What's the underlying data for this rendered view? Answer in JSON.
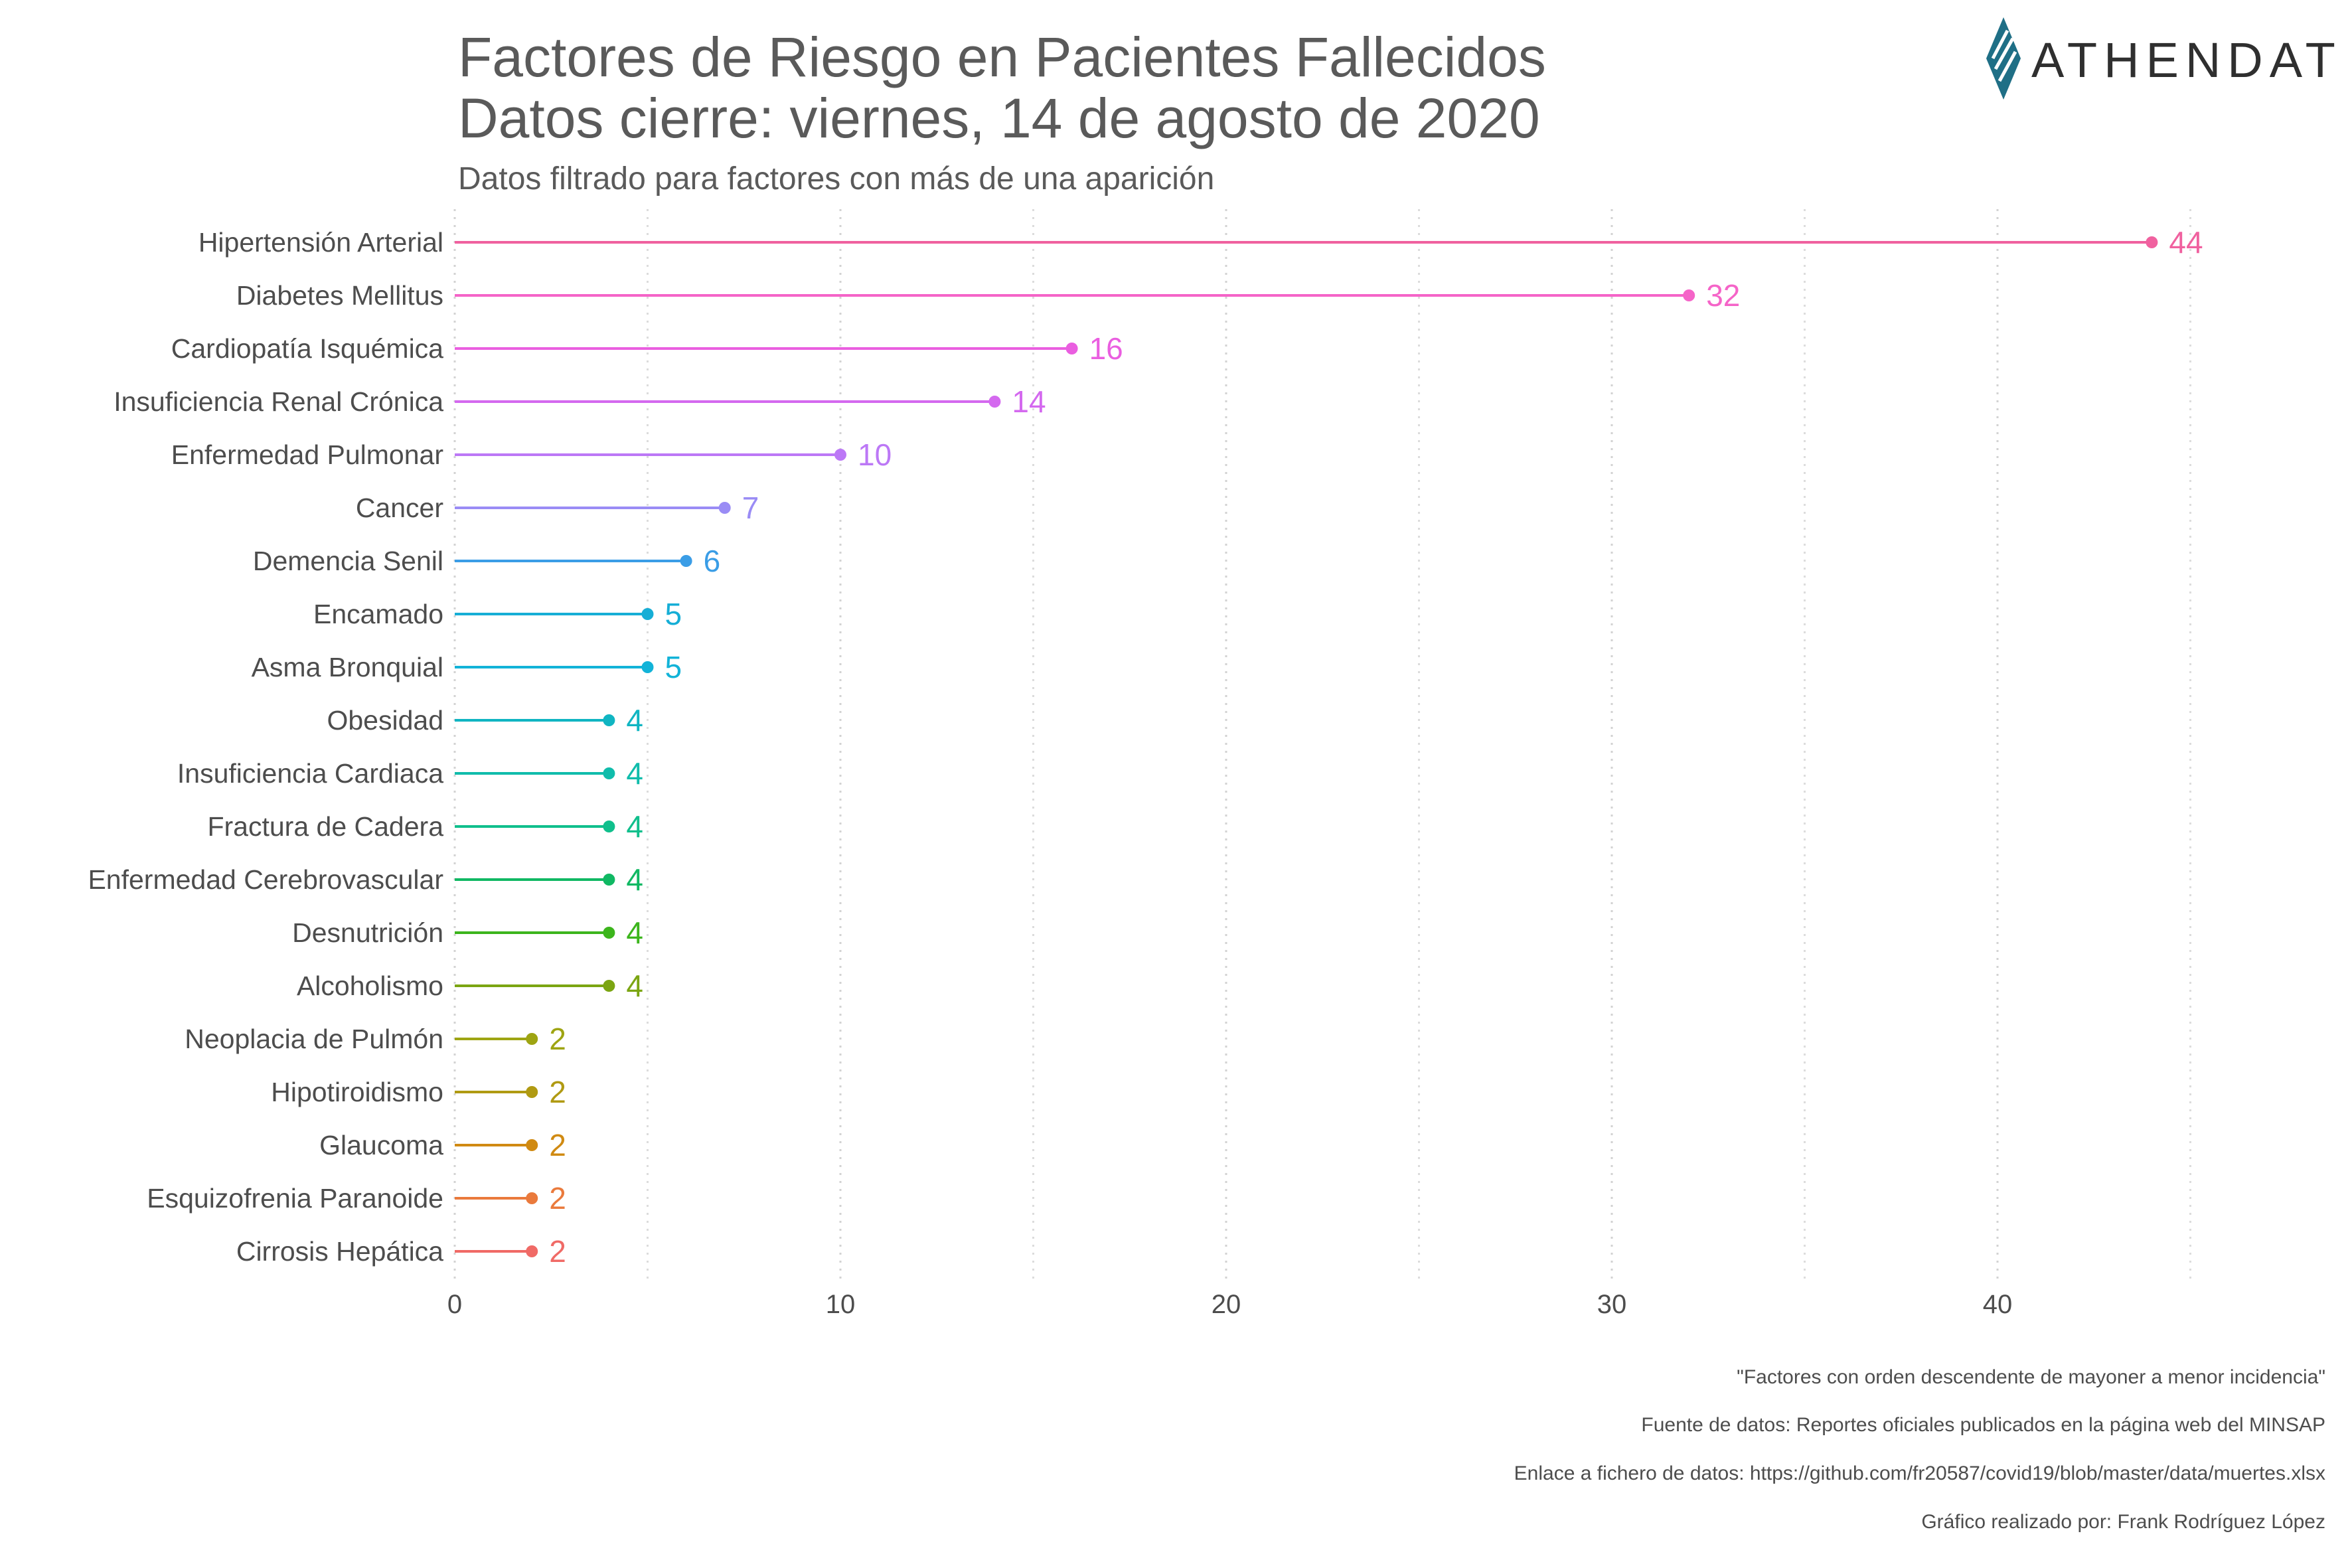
{
  "title_line1": "Factores de Riesgo en Pacientes Fallecidos",
  "title_line2": "Datos cierre: viernes, 14 de agosto de 2020",
  "subtitle": "Datos filtrado para factores con más de una aparición",
  "logo_text": "ATHENDAT",
  "logo_color": "#1f6f86",
  "captions": [
    "\"Factores con orden descendente de mayoner a menor incidencia\"",
    "Fuente de datos: Reportes oficiales publicados en la página web del MINSAP",
    "Enlace a fichero de datos: https://github.com/fr20587/covid19/blob/master/data/muertes.xlsx",
    "Gráfico realizado por: Frank Rodríguez López"
  ],
  "chart_data": {
    "type": "lollipop",
    "orientation": "horizontal",
    "xlim": [
      0,
      46
    ],
    "x_ticks": [
      0,
      10,
      20,
      30,
      40
    ],
    "grid": "vertical dotted",
    "categories": [
      "Hipertensión Arterial",
      "Diabetes Mellitus",
      "Cardiopatía Isquémica",
      "Insuficiencia Renal Crónica",
      "Enfermedad Pulmonar",
      "Cancer",
      "Demencia Senil",
      "Encamado",
      "Asma Bronquial",
      "Obesidad",
      "Insuficiencia Cardiaca",
      "Fractura de Cadera",
      "Enfermedad Cerebrovascular",
      "Desnutrición",
      "Alcoholismo",
      "Neoplacia de Pulmón",
      "Hipotiroidismo",
      "Glaucoma",
      "Esquizofrenia Paranoide",
      "Cirrosis Hepática"
    ],
    "values": [
      44,
      32,
      16,
      14,
      10,
      7,
      6,
      5,
      5,
      4,
      4,
      4,
      4,
      4,
      4,
      2,
      2,
      2,
      2,
      2
    ],
    "colors": [
      "#f0619f",
      "#f564c8",
      "#ea5ee0",
      "#d469ef",
      "#bc78f6",
      "#9a8cf5",
      "#3a9de6",
      "#16aed6",
      "#12b3d8",
      "#10b5c2",
      "#10bcab",
      "#10bf8c",
      "#10b863",
      "#3cb51c",
      "#7ba512",
      "#9ea412",
      "#b09a12",
      "#d08a12",
      "#ea7a3c",
      "#f06a66"
    ]
  }
}
